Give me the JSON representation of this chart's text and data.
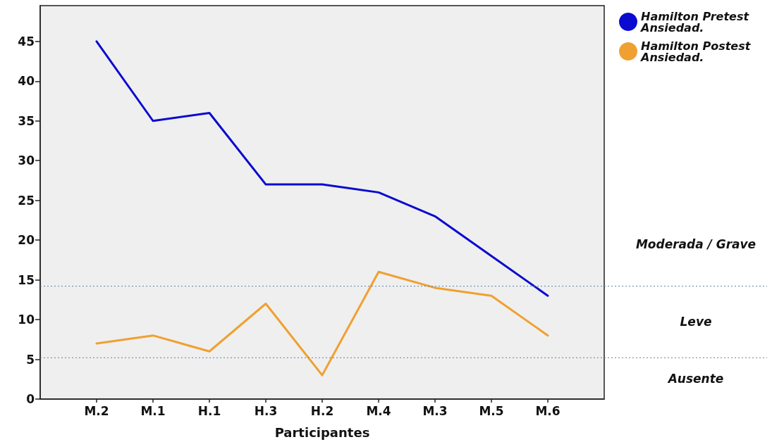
{
  "chart_data": {
    "type": "line",
    "xlabel": "Participantes",
    "categories": [
      "M.2",
      "M.1",
      "H.1",
      "H.3",
      "H.2",
      "M.4",
      "M.3",
      "M.5",
      "M.6"
    ],
    "series": [
      {
        "name": "Hamilton Pretest Ansiedad.",
        "color": "#0a0ad0",
        "values": [
          45,
          35,
          36,
          27,
          27,
          26,
          23,
          18,
          13
        ]
      },
      {
        "name": "Hamilton Postest Ansiedad.",
        "color": "#f0a030",
        "values": [
          7,
          8,
          6,
          12,
          3,
          16,
          14,
          13,
          8
        ]
      }
    ],
    "ylim": [
      0,
      49.5
    ],
    "yticks": [
      0,
      5,
      10,
      15,
      20,
      25,
      30,
      35,
      40,
      45
    ],
    "ref_lines": [
      {
        "axis": "y",
        "value": 14.2,
        "color": "#5b7fa6",
        "line_style": "dotted"
      },
      {
        "axis": "y",
        "value": 5.2,
        "color": "#5b7fa6",
        "line_style": "dotted"
      }
    ],
    "annotations": [
      "Moderada / Grave",
      "Leve",
      "Ausente"
    ],
    "legend": "top right",
    "grid": false,
    "marker": "none",
    "line_style": "solid"
  }
}
